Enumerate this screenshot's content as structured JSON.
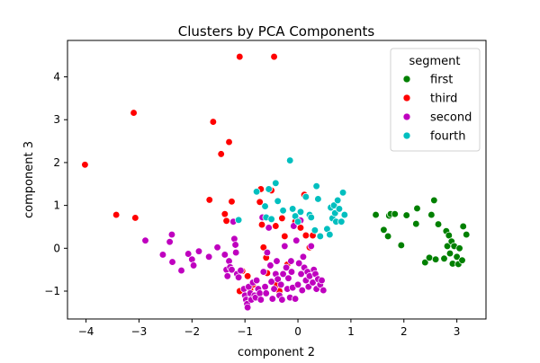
{
  "chart_data": {
    "type": "scatter",
    "title": "Clusters by PCA Components",
    "xlabel": "component 2",
    "ylabel": "component 3",
    "xlim": [
      -4.35,
      3.55
    ],
    "ylim": [
      -1.65,
      4.85
    ],
    "xticks": [
      -4,
      -3,
      -2,
      -1,
      0,
      1,
      2,
      3
    ],
    "yticks": [
      -1,
      0,
      1,
      2,
      3,
      4
    ],
    "grid": false,
    "legend": {
      "title": "segment",
      "placement": "top-right"
    },
    "series": [
      {
        "name": "first",
        "color": "#008000",
        "points": [
          [
            1.47,
            0.78
          ],
          [
            1.62,
            0.43
          ],
          [
            1.7,
            0.28
          ],
          [
            1.72,
            0.76
          ],
          [
            1.75,
            0.8
          ],
          [
            1.83,
            0.8
          ],
          [
            1.95,
            0.07
          ],
          [
            2.05,
            0.77
          ],
          [
            2.23,
            0.57
          ],
          [
            2.25,
            0.93
          ],
          [
            2.4,
            -0.33
          ],
          [
            2.48,
            -0.22
          ],
          [
            2.52,
            0.78
          ],
          [
            2.57,
            1.12
          ],
          [
            2.6,
            -0.26
          ],
          [
            2.65,
            0.56
          ],
          [
            2.76,
            -0.24
          ],
          [
            2.8,
            0.4
          ],
          [
            2.82,
            0.05
          ],
          [
            2.85,
            0.3
          ],
          [
            2.87,
            -0.12
          ],
          [
            2.9,
            0.16
          ],
          [
            2.92,
            -0.36
          ],
          [
            2.95,
            0.05
          ],
          [
            3.0,
            -0.2
          ],
          [
            3.03,
            -0.37
          ],
          [
            3.05,
            0.0
          ],
          [
            3.1,
            -0.28
          ],
          [
            3.12,
            0.51
          ],
          [
            3.18,
            0.32
          ]
        ]
      },
      {
        "name": "third",
        "color": "#ff0000",
        "points": [
          [
            -4.02,
            1.95
          ],
          [
            -3.43,
            0.78
          ],
          [
            -3.1,
            3.16
          ],
          [
            -3.07,
            0.71
          ],
          [
            -1.67,
            1.13
          ],
          [
            -1.6,
            2.95
          ],
          [
            -1.45,
            2.2
          ],
          [
            -1.38,
            0.8
          ],
          [
            -1.35,
            0.64
          ],
          [
            -1.3,
            2.48
          ],
          [
            -1.25,
            1.09
          ],
          [
            -1.1,
            4.47
          ],
          [
            -1.05,
            -0.53
          ],
          [
            -1.1,
            -1.0
          ],
          [
            -0.95,
            -0.65
          ],
          [
            -0.9,
            -0.96
          ],
          [
            -0.85,
            -0.85
          ],
          [
            -0.78,
            -1.1
          ],
          [
            -0.72,
            1.08
          ],
          [
            -0.7,
            1.38
          ],
          [
            -0.68,
            0.55
          ],
          [
            -0.65,
            0.02
          ],
          [
            -0.6,
            -0.22
          ],
          [
            -0.58,
            -0.58
          ],
          [
            -0.5,
            1.35
          ],
          [
            -0.45,
            4.47
          ],
          [
            -0.42,
            0.52
          ],
          [
            -0.4,
            -0.85
          ],
          [
            -0.35,
            -1.0
          ],
          [
            -0.3,
            0.7
          ],
          [
            -0.25,
            0.28
          ],
          [
            -0.2,
            -0.38
          ],
          [
            -0.05,
            0.62
          ],
          [
            0.05,
            0.48
          ],
          [
            0.12,
            1.25
          ],
          [
            0.15,
            0.3
          ],
          [
            0.22,
            0.02
          ],
          [
            0.28,
            0.3
          ]
        ]
      },
      {
        "name": "second",
        "color": "#bf00bf",
        "points": [
          [
            -2.88,
            0.18
          ],
          [
            -2.55,
            -0.15
          ],
          [
            -2.42,
            0.15
          ],
          [
            -2.38,
            0.32
          ],
          [
            -2.37,
            -0.32
          ],
          [
            -2.2,
            -0.52
          ],
          [
            -2.07,
            -0.13
          ],
          [
            -2.0,
            -0.26
          ],
          [
            -1.97,
            -0.4
          ],
          [
            -1.87,
            -0.07
          ],
          [
            -1.68,
            -0.2
          ],
          [
            -1.52,
            0.02
          ],
          [
            -1.38,
            -0.15
          ],
          [
            -1.35,
            -0.5
          ],
          [
            -1.33,
            -0.65
          ],
          [
            -1.3,
            -0.3
          ],
          [
            -1.28,
            -0.44
          ],
          [
            -1.25,
            -0.5
          ],
          [
            -1.22,
            0.62
          ],
          [
            -1.2,
            0.22
          ],
          [
            -1.18,
            0.08
          ],
          [
            -1.17,
            -0.1
          ],
          [
            -1.15,
            -0.6
          ],
          [
            -1.12,
            -0.68
          ],
          [
            -1.08,
            -0.52
          ],
          [
            -1.02,
            -0.95
          ],
          [
            -1.0,
            -1.1
          ],
          [
            -0.98,
            -1.2
          ],
          [
            -0.96,
            -1.3
          ],
          [
            -0.95,
            -1.38
          ],
          [
            -0.93,
            -0.9
          ],
          [
            -0.9,
            -1.05
          ],
          [
            -0.88,
            -1.2
          ],
          [
            -0.85,
            -0.8
          ],
          [
            -0.82,
            -1.1
          ],
          [
            -0.8,
            -1.15
          ],
          [
            -0.78,
            -0.75
          ],
          [
            -0.75,
            -0.95
          ],
          [
            -0.72,
            -1.05
          ],
          [
            -0.7,
            -1.2
          ],
          [
            -0.67,
            0.72
          ],
          [
            -0.65,
            -0.55
          ],
          [
            -0.62,
            -0.9
          ],
          [
            -0.6,
            -1.05
          ],
          [
            -0.58,
            -0.1
          ],
          [
            -0.55,
            0.48
          ],
          [
            -0.52,
            -0.4
          ],
          [
            -0.5,
            -0.78
          ],
          [
            -0.48,
            -1.18
          ],
          [
            -0.45,
            -0.95
          ],
          [
            -0.42,
            -0.6
          ],
          [
            -0.4,
            -0.3
          ],
          [
            -0.38,
            -0.72
          ],
          [
            -0.35,
            -1.1
          ],
          [
            -0.32,
            -0.85
          ],
          [
            -0.3,
            -1.2
          ],
          [
            -0.28,
            -0.6
          ],
          [
            -0.25,
            0.05
          ],
          [
            -0.22,
            -0.45
          ],
          [
            -0.2,
            -0.95
          ],
          [
            -0.18,
            -0.7
          ],
          [
            -0.15,
            -1.15
          ],
          [
            -0.13,
            -0.3
          ],
          [
            -0.12,
            -0.55
          ],
          [
            -0.1,
            -0.92
          ],
          [
            -0.08,
            0.52
          ],
          [
            -0.05,
            -1.18
          ],
          [
            -0.03,
            0.18
          ],
          [
            0.0,
            -0.85
          ],
          [
            0.02,
            -0.35
          ],
          [
            0.05,
            0.65
          ],
          [
            0.06,
            -0.6
          ],
          [
            0.08,
            -0.98
          ],
          [
            0.1,
            -0.2
          ],
          [
            0.12,
            -0.45
          ],
          [
            0.15,
            -0.75
          ],
          [
            0.18,
            -0.55
          ],
          [
            0.2,
            -0.9
          ],
          [
            0.22,
            -0.65
          ],
          [
            0.25,
            0.05
          ],
          [
            0.28,
            -0.8
          ],
          [
            0.3,
            -0.5
          ],
          [
            0.33,
            -0.6
          ],
          [
            0.35,
            -0.95
          ],
          [
            0.38,
            -0.72
          ],
          [
            0.42,
            -0.85
          ],
          [
            0.45,
            -0.75
          ],
          [
            0.48,
            -0.98
          ]
        ]
      },
      {
        "name": "fourth",
        "color": "#00bfbf",
        "points": [
          [
            -1.12,
            0.66
          ],
          [
            -0.78,
            1.32
          ],
          [
            -0.62,
            0.98
          ],
          [
            -0.6,
            0.72
          ],
          [
            -0.55,
            1.38
          ],
          [
            -0.5,
            0.68
          ],
          [
            -0.42,
            1.52
          ],
          [
            -0.38,
            1.1
          ],
          [
            -0.28,
            0.88
          ],
          [
            -0.15,
            2.05
          ],
          [
            -0.1,
            0.92
          ],
          [
            -0.05,
            0.75
          ],
          [
            0.0,
            0.62
          ],
          [
            0.05,
            0.85
          ],
          [
            0.15,
            1.2
          ],
          [
            0.22,
            0.78
          ],
          [
            0.25,
            0.72
          ],
          [
            0.32,
            0.42
          ],
          [
            0.35,
            1.45
          ],
          [
            0.38,
            1.15
          ],
          [
            0.42,
            0.28
          ],
          [
            0.55,
            0.45
          ],
          [
            0.6,
            0.32
          ],
          [
            0.62,
            0.95
          ],
          [
            0.65,
            0.7
          ],
          [
            0.68,
            1.0
          ],
          [
            0.7,
            0.82
          ],
          [
            0.72,
            0.62
          ],
          [
            0.75,
            1.12
          ],
          [
            0.78,
            0.92
          ],
          [
            0.82,
            0.62
          ],
          [
            0.85,
            1.3
          ],
          [
            0.88,
            0.78
          ]
        ]
      }
    ]
  }
}
